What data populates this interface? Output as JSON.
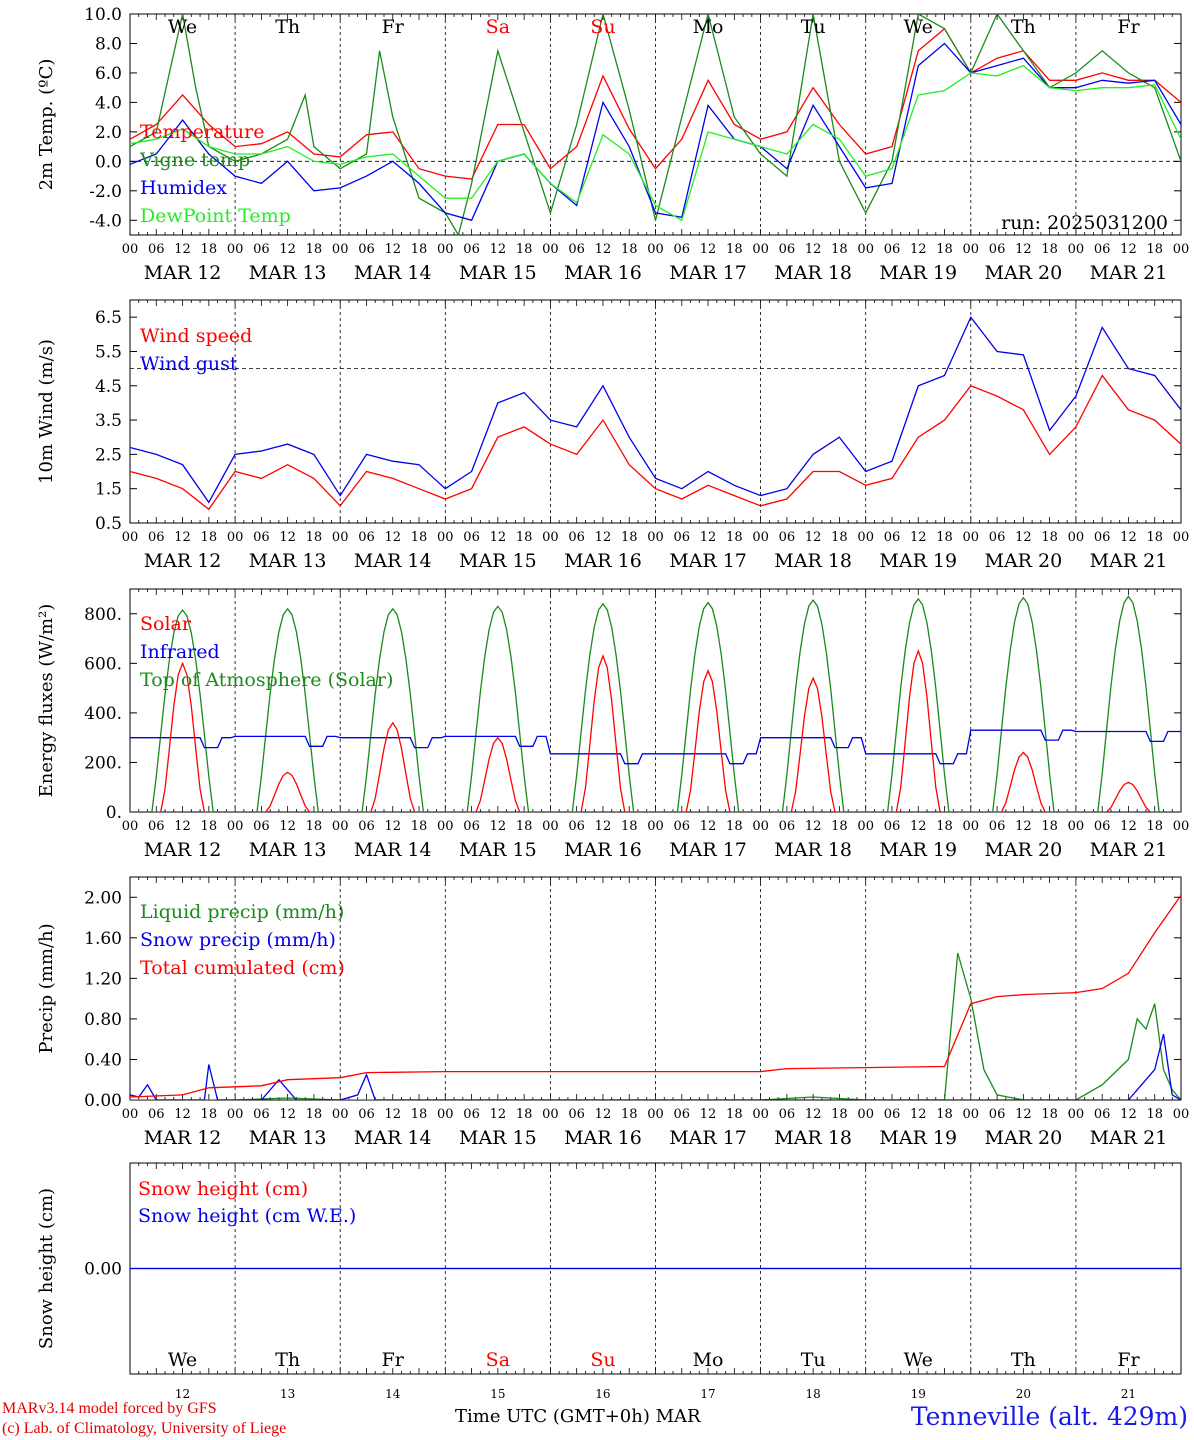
{
  "run_label": "run: 2025031200",
  "x_hours": [
    "00",
    "06",
    "12",
    "18"
  ],
  "date_labels": [
    "MAR 12",
    "MAR 13",
    "MAR 14",
    "MAR 15",
    "MAR 16",
    "MAR 17",
    "MAR 18",
    "MAR 19",
    "MAR 20",
    "MAR 21"
  ],
  "weekdays": [
    {
      "label": "We",
      "weekend": false
    },
    {
      "label": "Th",
      "weekend": false
    },
    {
      "label": "Fr",
      "weekend": false
    },
    {
      "label": "Sa",
      "weekend": true
    },
    {
      "label": "Su",
      "weekend": true
    },
    {
      "label": "Mo",
      "weekend": false
    },
    {
      "label": "Tu",
      "weekend": false
    },
    {
      "label": "We",
      "weekend": false
    },
    {
      "label": "Th",
      "weekend": false
    },
    {
      "label": "Fr",
      "weekend": false
    }
  ],
  "day_numbers": [
    "12",
    "13",
    "14",
    "15",
    "16",
    "17",
    "18",
    "19",
    "20",
    "21"
  ],
  "colors": {
    "red": "#ff0000",
    "green": "#1a8a1a",
    "blue": "#0000ee",
    "lightgreen": "#22ee22",
    "weekend": "#ff0000",
    "footer_red": "#e00000",
    "footer_blue": "#1a1ae6"
  },
  "footer": {
    "line1": "MARv3.14 model forced by GFS",
    "line2": "(c) Lab. of Climatology, University of Liege",
    "axis_title": "Time UTC (GMT+0h)",
    "month": "MAR",
    "station": "Tenneville (alt. 429m)"
  },
  "chart_data": [
    {
      "id": "temperature",
      "type": "line",
      "ylabel": "2m Temp. (ºC)",
      "ylim": [
        -5,
        10
      ],
      "ytick_labels": [
        "-4.0",
        "-2.0",
        "0.0",
        "2.0",
        "4.0",
        "6.0",
        "8.0",
        "10.0"
      ],
      "yticks": [
        -4,
        -2,
        0,
        2,
        4,
        6,
        8,
        10
      ],
      "ref_line": 0,
      "x_unit": "hours since MAR 12 00 UTC",
      "series": [
        {
          "name": "Temperature",
          "color": "red",
          "x": [
            0,
            6,
            12,
            18,
            24,
            30,
            36,
            42,
            48,
            54,
            60,
            66,
            72,
            78,
            84,
            90,
            96,
            102,
            108,
            114,
            120,
            126,
            132,
            138,
            144,
            150,
            156,
            162,
            168,
            174,
            180,
            186,
            192,
            198,
            204,
            210,
            216,
            222,
            228,
            234,
            240
          ],
          "y": [
            1.5,
            2.5,
            4.5,
            2.5,
            1.0,
            1.2,
            2.0,
            0.5,
            0.3,
            1.8,
            2.0,
            -0.5,
            -1.0,
            -1.2,
            2.5,
            2.5,
            -0.5,
            1.0,
            5.8,
            2.2,
            -0.5,
            1.5,
            5.5,
            2.5,
            1.5,
            2.0,
            5.0,
            2.5,
            0.5,
            1.0,
            7.5,
            9.0,
            6.0,
            7.0,
            7.5,
            5.5,
            5.5,
            6.0,
            5.5,
            5.5,
            4.0
          ]
        },
        {
          "name": "Vigne temp",
          "color": "green",
          "x": [
            0,
            6,
            9,
            12,
            15,
            18,
            24,
            30,
            36,
            40,
            42,
            48,
            54,
            57,
            60,
            66,
            72,
            75,
            78,
            84,
            90,
            96,
            102,
            108,
            114,
            120,
            126,
            132,
            138,
            144,
            150,
            156,
            162,
            168,
            174,
            180,
            186,
            192,
            198,
            204,
            210,
            216,
            222,
            228,
            234,
            240
          ],
          "y": [
            1.0,
            2.0,
            6.0,
            10.0,
            5.0,
            1.0,
            0.0,
            0.5,
            1.5,
            4.5,
            1.0,
            -0.5,
            0.5,
            7.5,
            3.0,
            -2.5,
            -3.5,
            -5.0,
            -1.5,
            7.5,
            2.0,
            -3.5,
            2.5,
            10,
            3.5,
            -4.0,
            3.0,
            10,
            3.0,
            0.5,
            -1.0,
            10,
            0.0,
            -3.5,
            0.0,
            10,
            9.0,
            6.0,
            10,
            7.5,
            5.0,
            6.0,
            7.5,
            6.0,
            5.0,
            0.0
          ]
        },
        {
          "name": "Humidex",
          "color": "blue",
          "x": [
            0,
            6,
            12,
            18,
            24,
            30,
            36,
            42,
            48,
            54,
            60,
            66,
            72,
            78,
            84,
            90,
            96,
            102,
            108,
            114,
            120,
            126,
            132,
            138,
            144,
            150,
            156,
            162,
            168,
            174,
            180,
            186,
            192,
            198,
            204,
            210,
            216,
            222,
            228,
            234,
            240
          ],
          "y": [
            -0.2,
            0.5,
            2.8,
            0.5,
            -1.0,
            -1.5,
            0.0,
            -2.0,
            -1.8,
            -1.0,
            0.0,
            -1.5,
            -3.5,
            -4.0,
            0.0,
            0.5,
            -1.5,
            -3.0,
            4.0,
            1.0,
            -3.5,
            -3.8,
            3.8,
            1.5,
            1.0,
            -0.5,
            3.8,
            1.0,
            -1.8,
            -1.5,
            6.5,
            8.0,
            6.0,
            6.5,
            7.0,
            5.0,
            5.0,
            5.5,
            5.3,
            5.5,
            2.5
          ]
        },
        {
          "name": "DewPoint Temp",
          "color": "lightgreen",
          "x": [
            0,
            6,
            12,
            18,
            24,
            30,
            36,
            42,
            48,
            54,
            60,
            66,
            72,
            78,
            84,
            90,
            96,
            102,
            108,
            114,
            120,
            126,
            132,
            138,
            144,
            150,
            156,
            162,
            168,
            174,
            180,
            186,
            192,
            198,
            204,
            210,
            216,
            222,
            228,
            234,
            240
          ],
          "y": [
            1.2,
            1.5,
            2.2,
            1.0,
            0.5,
            0.5,
            1.0,
            0.0,
            -0.2,
            0.3,
            0.5,
            -1.0,
            -2.5,
            -2.5,
            0.0,
            0.5,
            -1.5,
            -2.8,
            1.8,
            0.5,
            -3.0,
            -4.0,
            2.0,
            1.5,
            1.0,
            0.5,
            2.5,
            1.5,
            -1.0,
            -0.5,
            4.5,
            4.8,
            6.0,
            5.8,
            6.5,
            5.0,
            4.8,
            5.0,
            5.0,
            5.2,
            1.5
          ]
        }
      ]
    },
    {
      "id": "wind",
      "type": "line",
      "ylabel": "10m Wind (m/s)",
      "ylim": [
        0.5,
        7.0
      ],
      "ytick_labels": [
        "0.5",
        "1.5",
        "2.5",
        "3.5",
        "4.5",
        "5.5",
        "6.5"
      ],
      "yticks": [
        0.5,
        1.5,
        2.5,
        3.5,
        4.5,
        5.5,
        6.5
      ],
      "ref_line": 5.0,
      "series": [
        {
          "name": "Wind speed",
          "color": "red",
          "x": [
            0,
            6,
            12,
            18,
            24,
            30,
            36,
            42,
            48,
            54,
            60,
            66,
            72,
            78,
            84,
            90,
            96,
            102,
            108,
            114,
            120,
            126,
            132,
            138,
            144,
            150,
            156,
            162,
            168,
            174,
            180,
            186,
            192,
            198,
            204,
            210,
            216,
            222,
            228,
            234,
            240
          ],
          "y": [
            2.0,
            1.8,
            1.5,
            0.9,
            2.0,
            1.8,
            2.2,
            1.8,
            1.0,
            2.0,
            1.8,
            1.5,
            1.2,
            1.5,
            3.0,
            3.3,
            2.8,
            2.5,
            3.5,
            2.2,
            1.5,
            1.2,
            1.6,
            1.3,
            1.0,
            1.2,
            2.0,
            2.0,
            1.6,
            1.8,
            3.0,
            3.5,
            4.5,
            4.2,
            3.8,
            2.5,
            3.3,
            4.8,
            3.8,
            3.5,
            2.8
          ]
        },
        {
          "name": "Wind gust",
          "color": "blue",
          "x": [
            0,
            6,
            12,
            18,
            24,
            30,
            36,
            42,
            48,
            54,
            60,
            66,
            72,
            78,
            84,
            90,
            96,
            102,
            108,
            114,
            120,
            126,
            132,
            138,
            144,
            150,
            156,
            162,
            168,
            174,
            180,
            186,
            192,
            198,
            204,
            210,
            216,
            222,
            228,
            234,
            240
          ],
          "y": [
            2.7,
            2.5,
            2.2,
            1.1,
            2.5,
            2.6,
            2.8,
            2.5,
            1.3,
            2.5,
            2.3,
            2.2,
            1.5,
            2.0,
            4.0,
            4.3,
            3.5,
            3.3,
            4.5,
            3.0,
            1.8,
            1.5,
            2.0,
            1.6,
            1.3,
            1.5,
            2.5,
            3.0,
            2.0,
            2.3,
            4.5,
            4.8,
            6.5,
            5.5,
            5.4,
            3.2,
            4.2,
            6.2,
            5.0,
            4.8,
            3.8
          ]
        }
      ]
    },
    {
      "id": "energy",
      "type": "line",
      "ylabel": "Energy fluxes (W/m²)",
      "ylim": [
        0,
        900
      ],
      "ytick_labels": [
        "0.",
        "200.",
        "400.",
        "600.",
        "800."
      ],
      "yticks": [
        0,
        200,
        400,
        600,
        800
      ],
      "toa_peaks": [
        815,
        820,
        820,
        830,
        840,
        845,
        855,
        860,
        865,
        870
      ],
      "solar_peaks": [
        600,
        160,
        360,
        300,
        630,
        570,
        540,
        650,
        240,
        120
      ],
      "ir_days": [
        300,
        305,
        300,
        305,
        235,
        235,
        300,
        235,
        330,
        325
      ],
      "series": [
        {
          "name": "Solar",
          "color": "red"
        },
        {
          "name": "Infrared",
          "color": "blue"
        },
        {
          "name": "Top of Atmosphere (Solar)",
          "color": "green"
        }
      ]
    },
    {
      "id": "precip",
      "type": "line",
      "ylabel": "Precip (mm/h)",
      "ylim": [
        0,
        2.2
      ],
      "ytick_labels": [
        "0.00",
        "0.40",
        "0.80",
        "1.20",
        "1.60",
        "2.00"
      ],
      "yticks": [
        0,
        0.4,
        0.8,
        1.2,
        1.6,
        2.0
      ],
      "series": [
        {
          "name": "Liquid precip (mm/h)",
          "color": "green",
          "x": [
            0,
            12,
            18,
            24,
            36,
            48,
            120,
            144,
            156,
            168,
            186,
            189,
            192,
            195,
            198,
            204,
            216,
            222,
            228,
            230,
            232,
            234,
            236,
            238,
            240
          ],
          "y": [
            0.0,
            0.0,
            0.0,
            0.0,
            0.02,
            0.0,
            0.0,
            0.0,
            0.03,
            0.0,
            0.0,
            1.45,
            1.0,
            0.3,
            0.05,
            0.0,
            0.0,
            0.15,
            0.4,
            0.8,
            0.7,
            0.95,
            0.3,
            0.1,
            0.0
          ]
        },
        {
          "name": "Snow precip (mm/h)",
          "color": "blue",
          "x": [
            0,
            2,
            4,
            6,
            10,
            14,
            17,
            18,
            20,
            24,
            30,
            34,
            38,
            48,
            52,
            54,
            56,
            72,
            120,
            140,
            160,
            216,
            228,
            234,
            236,
            238,
            240
          ],
          "y": [
            0.05,
            0.03,
            0.15,
            0.0,
            0.0,
            0.0,
            0.0,
            0.35,
            0.0,
            0.0,
            0.0,
            0.2,
            0.0,
            0.0,
            0.05,
            0.25,
            0.0,
            0.0,
            0.0,
            0.0,
            0.0,
            0.0,
            0.0,
            0.3,
            0.65,
            0.05,
            0.0
          ]
        },
        {
          "name": "Total cumulated (cm)",
          "color": "red",
          "x": [
            0,
            12,
            18,
            30,
            36,
            48,
            54,
            72,
            120,
            144,
            150,
            168,
            186,
            192,
            198,
            204,
            216,
            222,
            228,
            234,
            240
          ],
          "y": [
            0.03,
            0.05,
            0.12,
            0.14,
            0.2,
            0.22,
            0.27,
            0.28,
            0.28,
            0.28,
            0.31,
            0.32,
            0.33,
            0.95,
            1.02,
            1.04,
            1.06,
            1.1,
            1.25,
            1.65,
            2.02
          ]
        }
      ]
    },
    {
      "id": "snow",
      "type": "line",
      "ylabel": "Snow height (cm)",
      "ylim": [
        -1,
        1
      ],
      "ytick_labels": [
        "0.00"
      ],
      "yticks": [
        0
      ],
      "series": [
        {
          "name": "Snow height (cm)",
          "color": "red",
          "x": [
            0,
            240
          ],
          "y": [
            0,
            0
          ]
        },
        {
          "name": "Snow height (cm W.E.)",
          "color": "blue",
          "x": [
            0,
            240
          ],
          "y": [
            0,
            0
          ]
        }
      ]
    }
  ]
}
